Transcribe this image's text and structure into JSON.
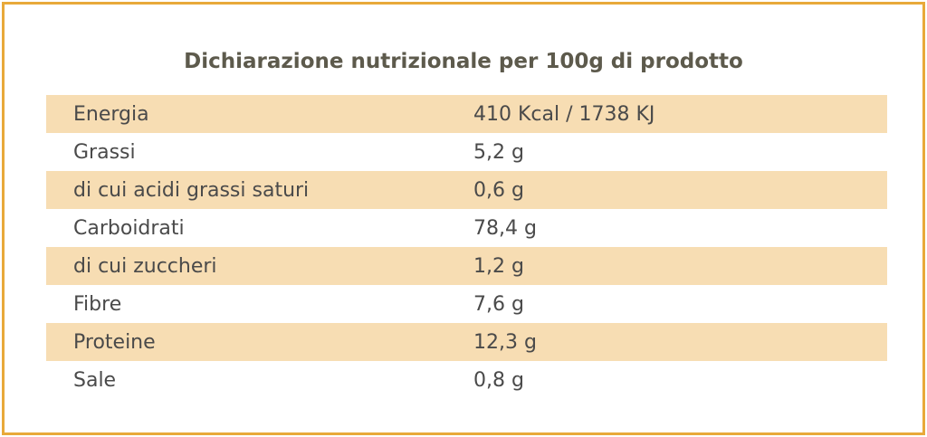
{
  "header": {
    "title": "Dichiarazione nutrizionale per 100g di prodotto"
  },
  "table": {
    "rows": [
      [
        "Energia",
        "410 Kcal / 1738 KJ"
      ],
      [
        "Grassi",
        "5,2 g"
      ],
      [
        "di cui acidi grassi saturi",
        "0,6 g"
      ],
      [
        "Carboidrati",
        "78,4 g"
      ],
      [
        "di cui zuccheri",
        "1,2 g"
      ],
      [
        "Fibre",
        "7,6 g"
      ],
      [
        "Proteine",
        "12,3 g"
      ],
      [
        "Sale",
        "0,8 g"
      ]
    ]
  }
}
